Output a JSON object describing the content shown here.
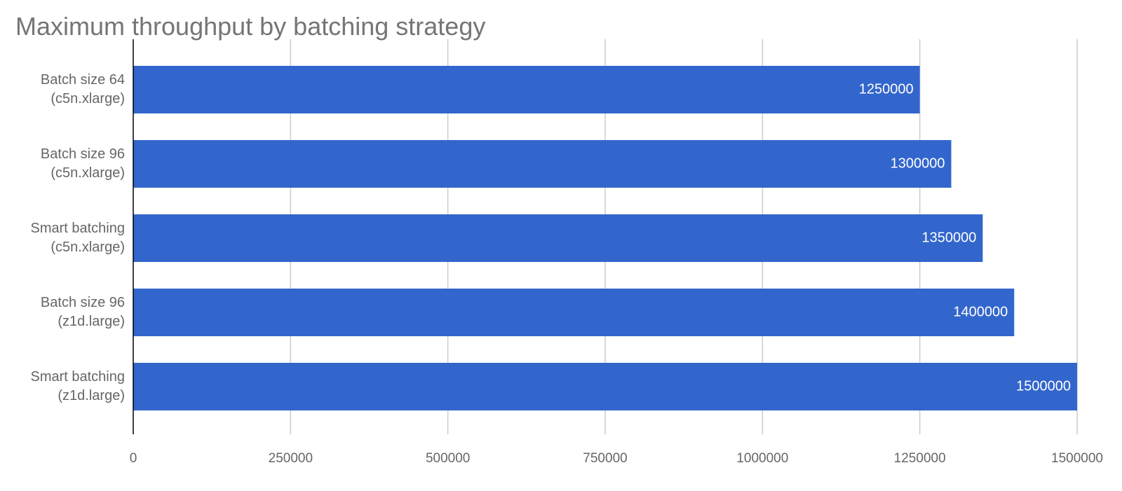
{
  "chart_data": {
    "type": "bar",
    "orientation": "horizontal",
    "title": "Maximum throughput by batching strategy",
    "xlabel": "",
    "ylabel": "",
    "categories": [
      [
        "Batch size 64",
        "(c5n.xlarge)"
      ],
      [
        "Batch size 96",
        "(c5n.xlarge)"
      ],
      [
        "Smart batching",
        "(c5n.xlarge)"
      ],
      [
        "Batch size 96",
        "(z1d.large)"
      ],
      [
        "Smart batching",
        "(z1d.large)"
      ]
    ],
    "values": [
      1250000,
      1300000,
      1350000,
      1400000,
      1500000
    ],
    "data_labels": [
      "1250000",
      "1300000",
      "1350000",
      "1400000",
      "1500000"
    ],
    "xlim": [
      0,
      1500000
    ],
    "x_ticks": [
      0,
      250000,
      500000,
      750000,
      1000000,
      1250000,
      1500000
    ],
    "x_tick_labels": [
      "0",
      "250000",
      "500000",
      "750000",
      "1000000",
      "1250000",
      "1500000"
    ],
    "grid": "vertical",
    "legend": "none",
    "colors": {
      "bar": "#3366cc",
      "grid": "#cccccc",
      "axis": "#000000",
      "label_text": "#666666",
      "title_text": "#757575",
      "data_label_text": "#ffffff"
    }
  }
}
